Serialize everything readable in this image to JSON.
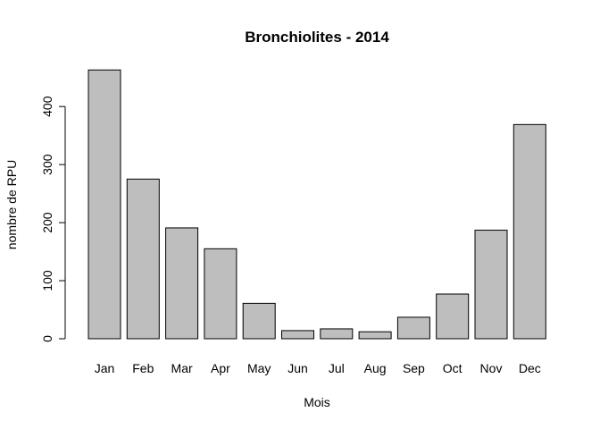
{
  "chart_data": {
    "type": "bar",
    "title": "Bronchiolites - 2014",
    "xlabel": "Mois",
    "ylabel": "nombre de RPU",
    "categories": [
      "Jan",
      "Feb",
      "Mar",
      "Apr",
      "May",
      "Jun",
      "Jul",
      "Aug",
      "Sep",
      "Oct",
      "Nov",
      "Dec"
    ],
    "values": [
      463,
      275,
      191,
      155,
      61,
      14,
      17,
      12,
      37,
      77,
      187,
      369
    ],
    "yticks": [
      0,
      100,
      200,
      300,
      400
    ],
    "ylim": [
      0,
      463
    ],
    "grid": false,
    "legend": "none",
    "bar_color": "#bebebe"
  }
}
